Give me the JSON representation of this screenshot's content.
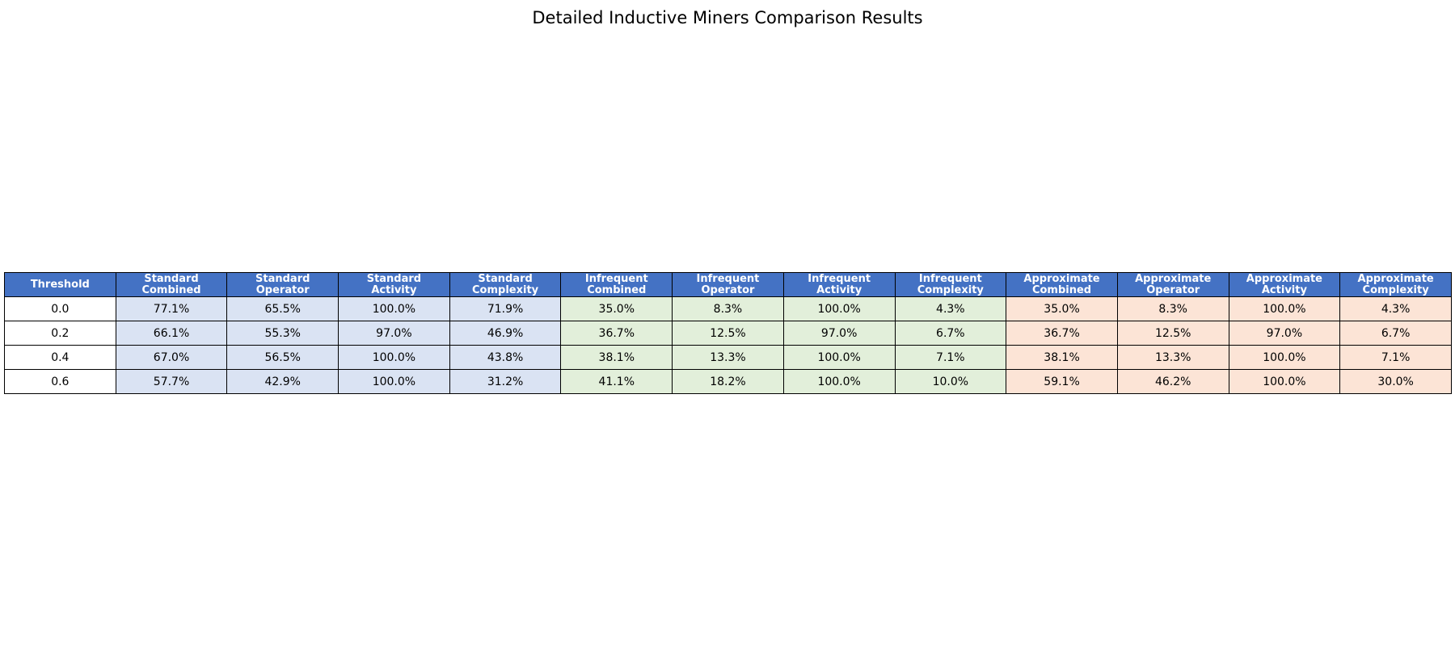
{
  "chart_data": {
    "type": "table",
    "title": "Detailed Inductive Miners Comparison Results",
    "columns": [
      {
        "line1": "Threshold",
        "line2": "",
        "group": "threshold"
      },
      {
        "line1": "Standard",
        "line2": "Combined",
        "group": "standard"
      },
      {
        "line1": "Standard",
        "line2": "Operator",
        "group": "standard"
      },
      {
        "line1": "Standard",
        "line2": "Activity",
        "group": "standard"
      },
      {
        "line1": "Standard",
        "line2": "Complexity",
        "group": "standard"
      },
      {
        "line1": "Infrequent",
        "line2": "Combined",
        "group": "infrequent"
      },
      {
        "line1": "Infrequent",
        "line2": "Operator",
        "group": "infrequent"
      },
      {
        "line1": "Infrequent",
        "line2": "Activity",
        "group": "infrequent"
      },
      {
        "line1": "Infrequent",
        "line2": "Complexity",
        "group": "infrequent"
      },
      {
        "line1": "Approximate",
        "line2": "Combined",
        "group": "approximate"
      },
      {
        "line1": "Approximate",
        "line2": "Operator",
        "group": "approximate"
      },
      {
        "line1": "Approximate",
        "line2": "Activity",
        "group": "approximate"
      },
      {
        "line1": "Approximate",
        "line2": "Complexity",
        "group": "approximate"
      }
    ],
    "rows": [
      [
        "0.0",
        "77.1%",
        "65.5%",
        "100.0%",
        "71.9%",
        "35.0%",
        "8.3%",
        "100.0%",
        "4.3%",
        "35.0%",
        "8.3%",
        "100.0%",
        "4.3%"
      ],
      [
        "0.2",
        "66.1%",
        "55.3%",
        "97.0%",
        "46.9%",
        "36.7%",
        "12.5%",
        "97.0%",
        "6.7%",
        "36.7%",
        "12.5%",
        "97.0%",
        "6.7%"
      ],
      [
        "0.4",
        "67.0%",
        "56.5%",
        "100.0%",
        "43.8%",
        "38.1%",
        "13.3%",
        "100.0%",
        "7.1%",
        "38.1%",
        "13.3%",
        "100.0%",
        "7.1%"
      ],
      [
        "0.6",
        "57.7%",
        "42.9%",
        "100.0%",
        "31.2%",
        "41.1%",
        "18.2%",
        "100.0%",
        "10.0%",
        "59.1%",
        "46.2%",
        "100.0%",
        "30.0%"
      ]
    ],
    "colors": {
      "header": "#4472c4",
      "threshold": "#ffffff",
      "standard": "#dae3f3",
      "infrequent": "#e2efda",
      "approximate": "#fce4d6"
    }
  }
}
